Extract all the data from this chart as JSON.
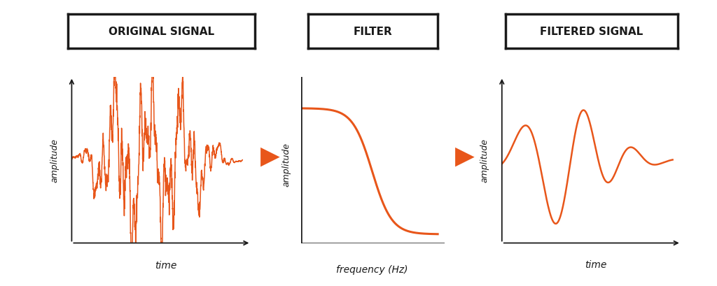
{
  "bg_color": "#ffffff",
  "signal_color": "#e8561a",
  "axis_color": "#1a1a1a",
  "title_border_color": "#1a1a1a",
  "title_bg_color": "#ffffff",
  "title_text_color": "#1a1a1a",
  "arrow_color": "#e8561a",
  "titles": [
    "ORIGINAL SIGNAL",
    "FILTER",
    "FILTERED SIGNAL"
  ],
  "xlabels": [
    "time",
    "frequency (Hz)",
    "time"
  ],
  "ylabel": "amplitude",
  "title_fontsize": 11,
  "label_fontsize": 10,
  "ylabel_fontsize": 9
}
